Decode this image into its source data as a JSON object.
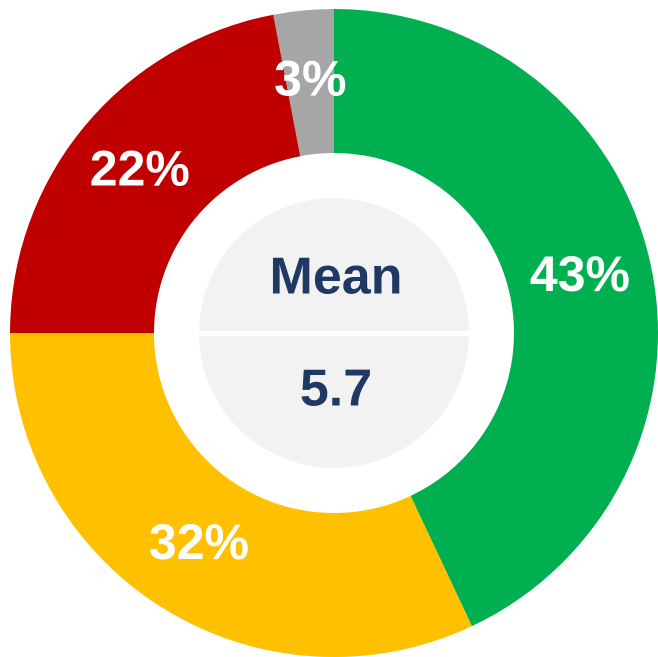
{
  "chart_data": {
    "type": "donut",
    "categories": [
      "Green",
      "Yellow",
      "Red",
      "Gray"
    ],
    "values": [
      43,
      32,
      22,
      3
    ],
    "value_labels": [
      "43%",
      "32%",
      "22%",
      "3%"
    ],
    "colors": [
      "#00b050",
      "#ffc000",
      "#c00000",
      "#a6a6a6"
    ],
    "center_label": "Mean",
    "center_value": 5.7
  }
}
